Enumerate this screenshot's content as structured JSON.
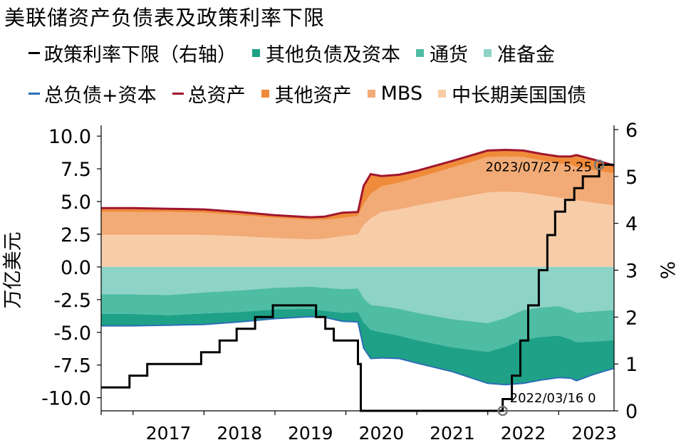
{
  "chart_data": {
    "type": "area",
    "title": "美联储资产负债表及政策利率下限",
    "ylabel": "万亿美元",
    "y2label": "%",
    "ylim": [
      -11,
      10.5
    ],
    "y2lim": [
      0,
      6
    ],
    "yticks": [
      "10.0",
      "7.5",
      "5.0",
      "2.5",
      "0.0",
      "-2.5",
      "-5.0",
      "-7.5",
      "-10.0"
    ],
    "y2ticks": [
      "0",
      "1",
      "2",
      "3",
      "4",
      "5",
      "6"
    ],
    "xlim": [
      2016.55,
      2023.78
    ],
    "xticks": [
      "2017",
      "2018",
      "2019",
      "2020",
      "2021",
      "2022",
      "2023"
    ],
    "legend": [
      {
        "name": "政策利率下限（右轴）",
        "color": "#000000",
        "kind": "line"
      },
      {
        "name": "其他负债及资本",
        "color": "#1fa187",
        "kind": "box"
      },
      {
        "name": "通货",
        "color": "#4fbca4",
        "kind": "box"
      },
      {
        "name": "准备金",
        "color": "#8dd3c7",
        "kind": "box"
      },
      {
        "name": "总负债+资本",
        "color": "#2b6fb6",
        "kind": "line"
      },
      {
        "name": "总资产",
        "color": "#a0162e",
        "kind": "line"
      },
      {
        "name": "其他资产",
        "color": "#ef8b3a",
        "kind": "box"
      },
      {
        "name": "MBS",
        "color": "#f2ab76",
        "kind": "box"
      },
      {
        "name": "中长期美国国债",
        "color": "#f7cda8",
        "kind": "box"
      }
    ],
    "x": [
      2016.55,
      2017.0,
      2017.5,
      2018.0,
      2018.5,
      2019.0,
      2019.5,
      2019.7,
      2019.95,
      2020.17,
      2020.25,
      2020.35,
      2020.5,
      2020.75,
      2021.0,
      2021.5,
      2022.0,
      2022.25,
      2022.5,
      2022.75,
      2023.0,
      2023.17,
      2023.25,
      2023.5,
      2023.78
    ],
    "treasuries": [
      2.45,
      2.45,
      2.45,
      2.45,
      2.35,
      2.2,
      2.1,
      2.15,
      2.35,
      2.5,
      3.2,
      3.7,
      4.2,
      4.4,
      4.7,
      5.2,
      5.7,
      5.75,
      5.7,
      5.5,
      5.3,
      5.2,
      5.1,
      4.9,
      4.7
    ],
    "mbs": [
      1.75,
      1.75,
      1.75,
      1.7,
      1.6,
      1.55,
      1.5,
      1.45,
      1.4,
      1.4,
      1.6,
      1.9,
      1.95,
      2.05,
      2.1,
      2.4,
      2.7,
      2.7,
      2.7,
      2.65,
      2.6,
      2.6,
      2.55,
      2.5,
      2.45
    ],
    "other_assets": [
      0.3,
      0.3,
      0.25,
      0.25,
      0.25,
      0.2,
      0.2,
      0.25,
      0.4,
      0.3,
      1.4,
      1.5,
      0.8,
      0.6,
      0.55,
      0.5,
      0.5,
      0.5,
      0.5,
      0.5,
      0.55,
      0.65,
      0.9,
      0.8,
      0.6
    ],
    "reserves": [
      -2.1,
      -2.1,
      -2.15,
      -1.95,
      -1.8,
      -1.6,
      -1.5,
      -1.6,
      -1.7,
      -1.65,
      -2.4,
      -2.9,
      -3.0,
      -3.2,
      -3.5,
      -4.0,
      -4.3,
      -3.9,
      -3.3,
      -3.1,
      -3.0,
      -3.3,
      -3.5,
      -3.4,
      -3.3
    ],
    "currency": [
      -1.5,
      -1.5,
      -1.55,
      -1.6,
      -1.65,
      -1.65,
      -1.7,
      -1.75,
      -1.8,
      -1.8,
      -1.85,
      -1.9,
      -2.0,
      -2.05,
      -2.1,
      -2.15,
      -2.2,
      -2.2,
      -2.25,
      -2.25,
      -2.25,
      -2.25,
      -2.25,
      -2.3,
      -2.3
    ],
    "other_liabilities": [
      -0.9,
      -0.9,
      -0.75,
      -0.85,
      -0.75,
      -0.7,
      -0.6,
      -0.5,
      -0.65,
      -0.75,
      -1.95,
      -2.2,
      -1.95,
      -1.75,
      -1.75,
      -1.85,
      -2.4,
      -2.9,
      -3.35,
      -3.3,
      -3.2,
      -2.95,
      -2.95,
      -2.5,
      -2.15
    ],
    "total_assets": [
      4.5,
      4.5,
      4.45,
      4.4,
      4.2,
      3.95,
      3.8,
      3.85,
      4.15,
      4.2,
      6.2,
      7.1,
      6.95,
      7.05,
      7.35,
      8.1,
      8.9,
      8.95,
      8.9,
      8.65,
      8.45,
      8.45,
      8.55,
      8.2,
      7.75
    ],
    "policy_rate": [
      [
        2016.55,
        0.5
      ],
      [
        2016.95,
        0.5
      ],
      [
        2016.95,
        0.75
      ],
      [
        2017.2,
        0.75
      ],
      [
        2017.2,
        1.0
      ],
      [
        2017.46,
        1.0
      ],
      [
        2017.46,
        1.0
      ],
      [
        2017.96,
        1.0
      ],
      [
        2017.96,
        1.25
      ],
      [
        2018.22,
        1.25
      ],
      [
        2018.22,
        1.5
      ],
      [
        2018.46,
        1.5
      ],
      [
        2018.46,
        1.75
      ],
      [
        2018.72,
        1.75
      ],
      [
        2018.72,
        2.0
      ],
      [
        2018.97,
        2.0
      ],
      [
        2018.97,
        2.25
      ],
      [
        2019.58,
        2.25
      ],
      [
        2019.58,
        2.0
      ],
      [
        2019.71,
        2.0
      ],
      [
        2019.71,
        1.75
      ],
      [
        2019.83,
        1.75
      ],
      [
        2019.83,
        1.5
      ],
      [
        2020.17,
        1.5
      ],
      [
        2020.17,
        1.0
      ],
      [
        2020.21,
        1.0
      ],
      [
        2020.21,
        0.0
      ],
      [
        2022.21,
        0.0
      ],
      [
        2022.21,
        0.25
      ],
      [
        2022.34,
        0.25
      ],
      [
        2022.34,
        0.75
      ],
      [
        2022.46,
        0.75
      ],
      [
        2022.46,
        1.5
      ],
      [
        2022.57,
        1.5
      ],
      [
        2022.57,
        2.25
      ],
      [
        2022.72,
        2.25
      ],
      [
        2022.72,
        3.0
      ],
      [
        2022.84,
        3.0
      ],
      [
        2022.84,
        3.75
      ],
      [
        2022.95,
        3.75
      ],
      [
        2022.95,
        4.25
      ],
      [
        2023.09,
        4.25
      ],
      [
        2023.09,
        4.5
      ],
      [
        2023.22,
        4.5
      ],
      [
        2023.22,
        4.75
      ],
      [
        2023.34,
        4.75
      ],
      [
        2023.34,
        5.0
      ],
      [
        2023.57,
        5.0
      ],
      [
        2023.57,
        5.25
      ],
      [
        2023.78,
        5.25
      ]
    ],
    "annotations": [
      {
        "label": "2022/03/16 0",
        "x": 2022.21,
        "y2": 0.0
      },
      {
        "label": "2023/07/27 5.25",
        "x": 2023.57,
        "y2": 5.25
      }
    ]
  }
}
